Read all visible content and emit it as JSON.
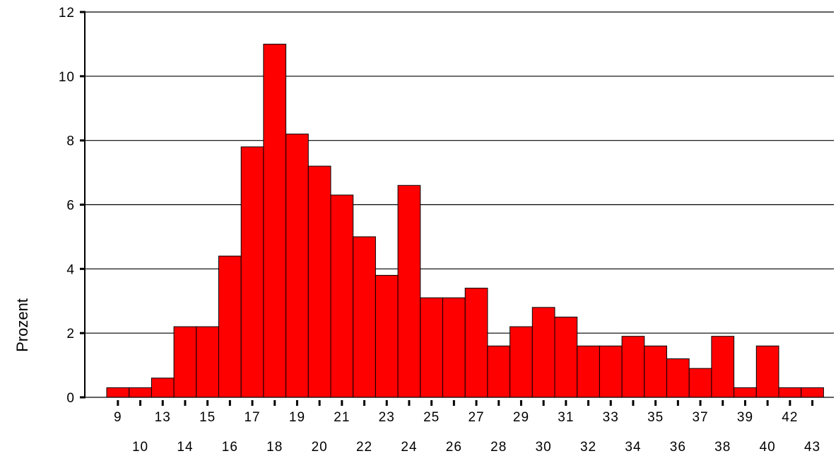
{
  "chart_data": {
    "type": "bar",
    "title": "",
    "xlabel": "",
    "ylabel": "Prozent",
    "ylim": [
      0,
      12
    ],
    "y_ticks": [
      0,
      2,
      4,
      6,
      8,
      10,
      12
    ],
    "grid": true,
    "bar_color": "#ff0000",
    "categories": [
      "9",
      "10",
      "13",
      "14",
      "15",
      "16",
      "17",
      "18",
      "19",
      "20",
      "21",
      "22",
      "23",
      "24",
      "25",
      "26",
      "27",
      "28",
      "29",
      "30",
      "31",
      "32",
      "33",
      "34",
      "35",
      "36",
      "37",
      "38",
      "39",
      "40",
      "42",
      "43"
    ],
    "values": [
      0.3,
      0.3,
      0.6,
      2.2,
      2.2,
      4.4,
      7.8,
      11.0,
      8.2,
      7.2,
      6.3,
      5.0,
      3.8,
      6.6,
      3.1,
      3.1,
      3.4,
      1.6,
      2.2,
      2.8,
      2.5,
      1.6,
      1.6,
      1.9,
      1.6,
      1.2,
      0.9,
      1.9,
      0.3,
      1.6,
      0.3,
      0.3
    ]
  }
}
